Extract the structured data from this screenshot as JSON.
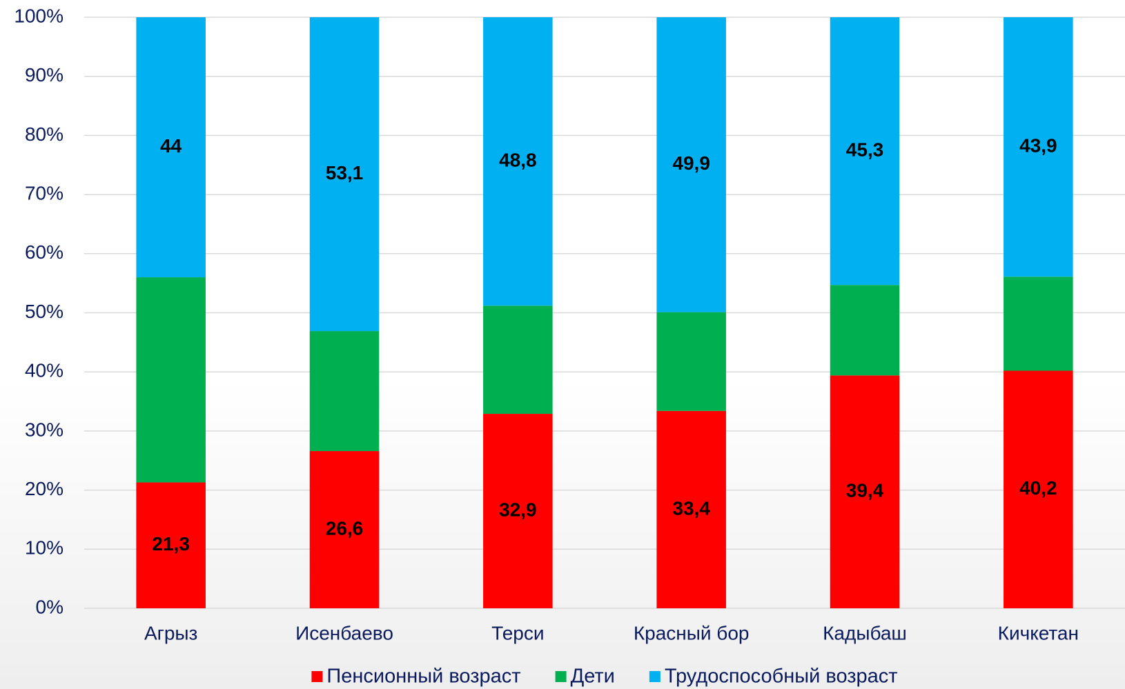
{
  "chart_data": {
    "type": "stacked_bar",
    "categories": [
      "Агрыз",
      "Исенбаево",
      "Терси",
      "Красный бор",
      "Кадыбаш",
      "Кичкетан"
    ],
    "series": [
      {
        "name": "Пенсионный возраст",
        "color": "#ff0000",
        "values": [
          21.3,
          26.6,
          32.9,
          33.4,
          39.4,
          40.2
        ],
        "value_labels": [
          "21,3",
          "26,6",
          "32,9",
          "33,4",
          "39,4",
          "40,2"
        ]
      },
      {
        "name": "Дети",
        "color": "#00b050",
        "values": [
          34.7,
          20.3,
          18.3,
          16.7,
          15.3,
          15.9
        ]
      },
      {
        "name": "Трудоспособный возраст",
        "color": "#00b0f0",
        "values": [
          44,
          53.1,
          48.8,
          49.9,
          45.3,
          43.9
        ],
        "value_labels": [
          "44",
          "53,1",
          "48,8",
          "49,9",
          "45,3",
          "43,9"
        ]
      }
    ],
    "ylim": [
      0,
      100
    ],
    "yticks": [
      {
        "value": 0,
        "label": "0%"
      },
      {
        "value": 10,
        "label": "10%"
      },
      {
        "value": 20,
        "label": "20%"
      },
      {
        "value": 30,
        "label": "30%"
      },
      {
        "value": 40,
        "label": "40%"
      },
      {
        "value": 50,
        "label": "50%"
      },
      {
        "value": 60,
        "label": "60%"
      },
      {
        "value": 70,
        "label": "70%"
      },
      {
        "value": 80,
        "label": "80%"
      },
      {
        "value": 90,
        "label": "90%"
      },
      {
        "value": 100,
        "label": "100%"
      }
    ],
    "grid": true,
    "legend": "bottom"
  }
}
